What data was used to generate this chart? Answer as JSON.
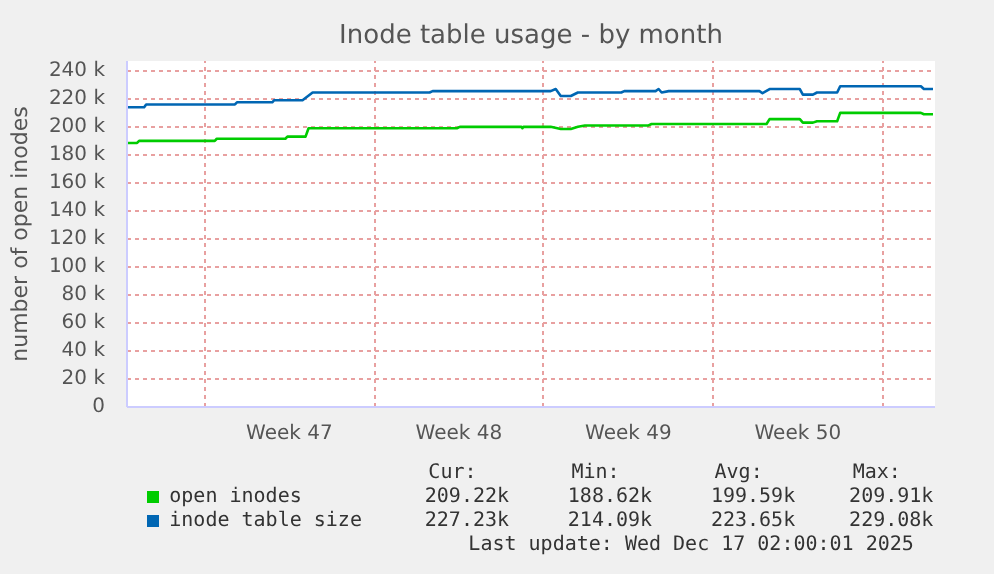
{
  "chart_data": {
    "type": "line",
    "title": "Inode table usage - by month",
    "ylabel": "number of open inodes",
    "xlim": [
      "2025-11-13T19:00",
      "2025-12-17T04:00"
    ],
    "xticks": [
      {
        "value": "2025-11-17",
        "label": null
      },
      {
        "value": "2025-11-20T12:00",
        "label": "Week 47"
      },
      {
        "value": "2025-11-24",
        "label": null
      },
      {
        "value": "2025-11-27T12:00",
        "label": "Week 48"
      },
      {
        "value": "2025-12-01",
        "label": null
      },
      {
        "value": "2025-12-04T12:00",
        "label": "Week 49"
      },
      {
        "value": "2025-12-08",
        "label": null
      },
      {
        "value": "2025-12-11T12:00",
        "label": "Week 50"
      },
      {
        "value": "2025-12-15",
        "label": null
      }
    ],
    "ylim": [
      0,
      247000
    ],
    "yticks": [
      {
        "value": 0,
        "label": "0"
      },
      {
        "value": 20000,
        "label": "20 k"
      },
      {
        "value": 40000,
        "label": "40 k"
      },
      {
        "value": 60000,
        "label": "60 k"
      },
      {
        "value": 80000,
        "label": "80 k"
      },
      {
        "value": 100000,
        "label": "100 k"
      },
      {
        "value": 120000,
        "label": "120 k"
      },
      {
        "value": 140000,
        "label": "140 k"
      },
      {
        "value": 160000,
        "label": "160 k"
      },
      {
        "value": 180000,
        "label": "180 k"
      },
      {
        "value": 200000,
        "label": "200 k"
      },
      {
        "value": 220000,
        "label": "220 k"
      },
      {
        "value": 240000,
        "label": "240 k"
      }
    ],
    "grid": true,
    "legend": "bottom",
    "marker": "none",
    "line_style": "solid",
    "series": [
      {
        "name": "open inodes",
        "color": "#00cc00",
        "x": [
          "2025-11-13T19:00",
          "2025-11-14T05:00",
          "2025-11-14T07:00",
          "2025-11-17T10:00",
          "2025-11-17T12:00",
          "2025-11-20T08:00",
          "2025-11-20T10:00",
          "2025-11-21T04:00",
          "2025-11-21T07:00",
          "2025-11-27T10:00",
          "2025-11-27T13:00",
          "2025-11-30T02:00",
          "2025-11-30T03:00",
          "2025-11-30T04:00",
          "2025-12-01T07:00",
          "2025-12-01T17:00",
          "2025-12-02T03:00",
          "2025-12-02T10:00",
          "2025-12-02T17:00",
          "2025-12-05T08:00",
          "2025-12-05T11:00",
          "2025-12-05T18:00",
          "2025-12-06T01:00",
          "2025-12-10T05:00",
          "2025-12-10T08:00",
          "2025-12-11T14:00",
          "2025-12-11T17:00",
          "2025-12-12T03:00",
          "2025-12-12T07:00",
          "2025-12-13T03:00",
          "2025-12-13T06:00",
          "2025-12-16T14:00",
          "2025-12-16T17:00",
          "2025-12-17T02:00"
        ],
        "values": [
          188500,
          188500,
          190000,
          190000,
          191500,
          191500,
          193000,
          193000,
          199000,
          199000,
          200000,
          200000,
          199000,
          200000,
          200000,
          198500,
          198500,
          200000,
          201000,
          201000,
          202000,
          202000,
          202000,
          202000,
          205500,
          205500,
          203000,
          203000,
          204000,
          204000,
          210000,
          210000,
          209000,
          209000
        ]
      },
      {
        "name": "inode table size",
        "color": "#0066b3",
        "x": [
          "2025-11-13T19:00",
          "2025-11-14T12:00",
          "2025-11-14T14:00",
          "2025-11-18T06:00",
          "2025-11-18T08:00",
          "2025-11-19T19:00",
          "2025-11-19T21:00",
          "2025-11-21T01:00",
          "2025-11-21T11:00",
          "2025-11-26T07:00",
          "2025-11-26T10:00",
          "2025-12-01T07:00",
          "2025-12-01T12:00",
          "2025-12-01T17:00",
          "2025-12-02T03:00",
          "2025-12-02T10:00",
          "2025-12-04T05:00",
          "2025-12-04T08:00",
          "2025-12-05T15:00",
          "2025-12-05T18:00",
          "2025-12-05T21:00",
          "2025-12-06T04:00",
          "2025-12-09T22:00",
          "2025-12-10T01:00",
          "2025-12-10T08:00",
          "2025-12-11T14:00",
          "2025-12-11T17:00",
          "2025-12-12T03:00",
          "2025-12-12T07:00",
          "2025-12-13T03:00",
          "2025-12-13T06:00",
          "2025-12-16T14:00",
          "2025-12-16T17:00",
          "2025-12-17T02:00"
        ],
        "values": [
          214000,
          214000,
          216000,
          216000,
          217500,
          217500,
          219000,
          219000,
          224500,
          224500,
          225500,
          225500,
          227000,
          222000,
          222000,
          224500,
          224500,
          225500,
          225500,
          227000,
          224500,
          225500,
          225500,
          224000,
          227000,
          227000,
          223000,
          223000,
          224500,
          224500,
          229000,
          229000,
          227000,
          227000
        ]
      }
    ],
    "annotations": [
      "Cur:",
      "Min:",
      "Avg:",
      "Max:",
      "209.22k",
      "188.62k",
      "199.59k",
      "209.91k",
      "227.23k",
      "214.09k",
      "223.65k",
      "229.08k",
      "Last update: Wed Dec 17 02:00:01 2025"
    ]
  }
}
